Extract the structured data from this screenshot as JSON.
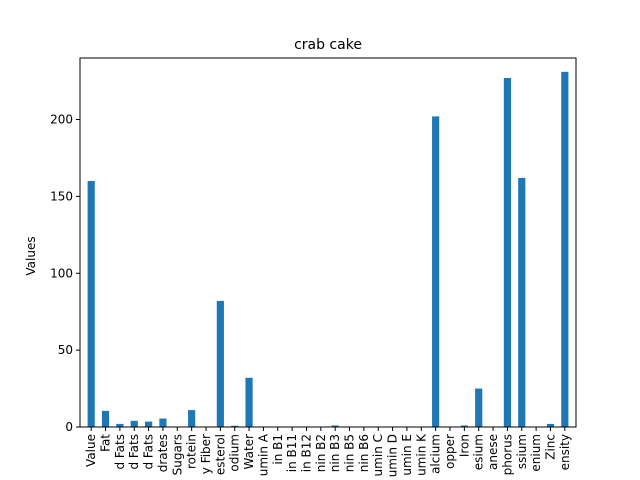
{
  "chart_data": {
    "type": "bar",
    "title": "crab cake",
    "xlabel": "",
    "ylabel": "Values",
    "ylim": [
      0,
      240
    ],
    "yticks": [
      0,
      50,
      100,
      150,
      200
    ],
    "grid": false,
    "legend": "none",
    "bar_color": "#1f77b4",
    "categories": [
      "Value",
      "Fat",
      "d Fats",
      "d Fats",
      "d Fats",
      "drates",
      "Sugars",
      "rotein",
      "y Fiber",
      "esterol",
      "odium",
      "Water",
      "umin A",
      "in B1",
      "in B11",
      "in B12",
      "nin B2",
      "nin B3",
      "nin B5",
      "nin B6",
      "umin C",
      "umin D",
      "umin E",
      "umin K",
      "alcium",
      "opper",
      "Iron",
      "esium",
      "anese",
      "phorus",
      "ssium",
      "enium",
      "Zinc",
      "ensity"
    ],
    "values": [
      160,
      10.5,
      2,
      4,
      3.5,
      5.5,
      0.3,
      11,
      0.2,
      82,
      0.8,
      32,
      0.2,
      0.1,
      0.1,
      0.3,
      0.2,
      1,
      0.2,
      0.2,
      0.2,
      0.1,
      0.2,
      0.1,
      202,
      0.2,
      1,
      25,
      0.2,
      227,
      162,
      0.2,
      2,
      231
    ]
  }
}
